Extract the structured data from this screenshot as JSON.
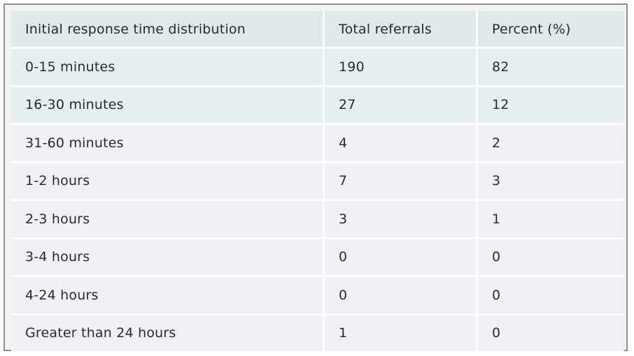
{
  "table": {
    "headers": [
      "Initial response time distribution",
      "Total referrals",
      "Percent (%)"
    ],
    "rows": [
      {
        "interval": "0-15 minutes",
        "total": "190",
        "percent": "82"
      },
      {
        "interval": "16-30 minutes",
        "total": "27",
        "percent": "12"
      },
      {
        "interval": "31-60 minutes",
        "total": "4",
        "percent": "2"
      },
      {
        "interval": "1-2 hours",
        "total": "7",
        "percent": "3"
      },
      {
        "interval": "2-3 hours",
        "total": "3",
        "percent": "1"
      },
      {
        "interval": "3-4 hours",
        "total": "0",
        "percent": "0"
      },
      {
        "interval": "4-24 hours",
        "total": "0",
        "percent": "0"
      },
      {
        "interval": "Greater than 24 hours",
        "total": "1",
        "percent": "0"
      }
    ]
  },
  "colors": {
    "header_bg": "#dfe8ea",
    "highlight_row_bg": "#e5eff1",
    "row_bg": "#f0f1f4",
    "frame_border": "#8f8f8f"
  }
}
